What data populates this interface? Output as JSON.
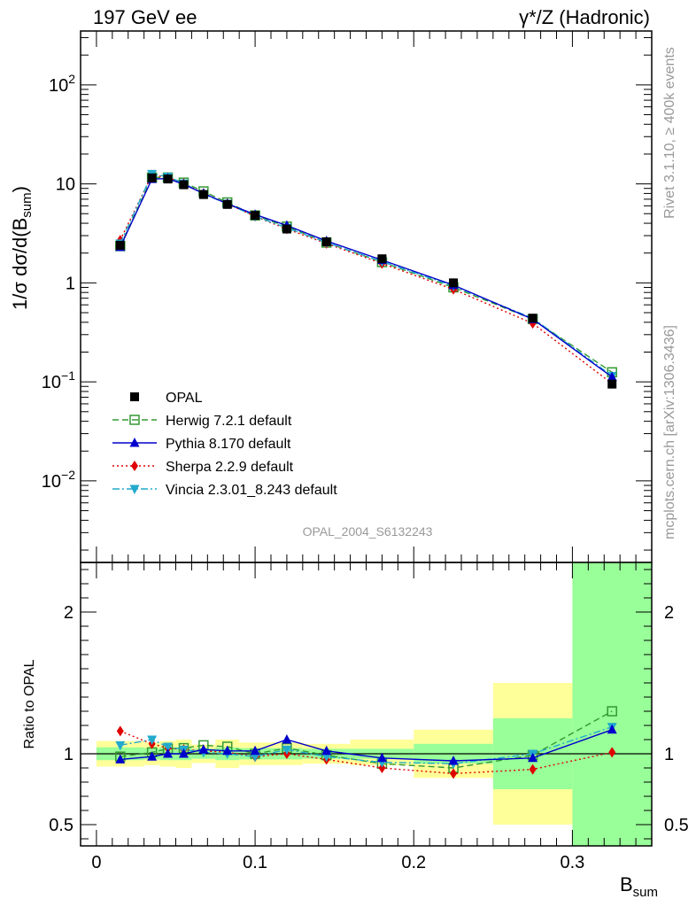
{
  "header": {
    "left": "197 GeV ee",
    "right": "γ*/Z (Hadronic)"
  },
  "side_labels": {
    "rivet": "Rivet 3.1.10, ≥ 400k events",
    "mcplots": "mcplots.cern.ch [arXiv:1306.3436]"
  },
  "analysis_label": "OPAL_2004_S6132243",
  "colors": {
    "OPAL": "#000000",
    "Herwig": "#339933",
    "Pythia": "#0000cc",
    "Sherpa": "#e00000",
    "Vincia": "#22aacc",
    "band_inner": "#99ff99",
    "band_outer": "#ffff99",
    "axis": "#000000"
  },
  "chart_data": [
    {
      "type": "line",
      "panel": "main",
      "yscale": "log",
      "ylabel_parts": {
        "main": "1/σ dσ/d(B",
        "sub": "sum",
        "close": ")"
      },
      "xlim": [
        -0.01,
        0.35
      ],
      "ylim": [
        0.0015,
        350
      ],
      "y_ticks": [
        {
          "value": 0.01,
          "base": "10",
          "exp": "−2"
        },
        {
          "value": 0.1,
          "base": "10",
          "exp": "−1"
        },
        {
          "value": 1,
          "base": "1",
          "exp": ""
        },
        {
          "value": 10,
          "base": "10",
          "exp": ""
        },
        {
          "value": 100,
          "base": "10",
          "exp": "2"
        }
      ],
      "x": [
        0.015,
        0.035,
        0.045,
        0.055,
        0.0675,
        0.0825,
        0.1,
        0.12,
        0.145,
        0.18,
        0.225,
        0.275,
        0.325
      ],
      "bins": [
        [
          0.0,
          0.03
        ],
        [
          0.03,
          0.04
        ],
        [
          0.04,
          0.05
        ],
        [
          0.05,
          0.06
        ],
        [
          0.06,
          0.075
        ],
        [
          0.075,
          0.09
        ],
        [
          0.09,
          0.11
        ],
        [
          0.11,
          0.13
        ],
        [
          0.13,
          0.16
        ],
        [
          0.16,
          0.2
        ],
        [
          0.2,
          0.25
        ],
        [
          0.25,
          0.3
        ],
        [
          0.3,
          0.35
        ]
      ],
      "series": [
        {
          "name": "OPAL",
          "legend": "OPAL",
          "marker": "square",
          "line": "none",
          "values": [
            2.4,
            11.5,
            11.2,
            9.8,
            7.8,
            6.2,
            4.8,
            3.5,
            2.6,
            1.75,
            1.0,
            0.44,
            0.095
          ]
        },
        {
          "name": "Herwig",
          "legend": "Herwig 7.2.1 default",
          "marker": "open-square",
          "line": "dashed",
          "values": [
            2.35,
            11.6,
            11.6,
            10.3,
            8.4,
            6.5,
            4.8,
            3.7,
            2.55,
            1.62,
            0.9,
            0.43,
            0.125
          ]
        },
        {
          "name": "Pythia",
          "legend": "Pythia 8.170 default",
          "marker": "triangle-up",
          "line": "solid",
          "values": [
            2.3,
            11.2,
            11.3,
            9.9,
            8.0,
            6.3,
            4.9,
            3.8,
            2.65,
            1.7,
            0.95,
            0.43,
            0.112
          ]
        },
        {
          "name": "Sherpa",
          "legend": "Sherpa 2.2.9 default",
          "marker": "diamond",
          "line": "dotted",
          "values": [
            2.7,
            12.3,
            11.6,
            10.1,
            8.0,
            6.3,
            4.7,
            3.5,
            2.5,
            1.57,
            0.86,
            0.39,
            0.096
          ]
        },
        {
          "name": "Vincia",
          "legend": "Vincia 2.3.01_8.243 default",
          "marker": "triangle-down",
          "line": "dashdot",
          "values": [
            2.5,
            12.6,
            11.8,
            10.1,
            7.9,
            6.3,
            4.7,
            3.6,
            2.55,
            1.64,
            0.93,
            0.44,
            0.115
          ]
        }
      ]
    },
    {
      "type": "line",
      "panel": "ratio",
      "ylabel": "Ratio to OPAL",
      "xlabel_parts": {
        "main": "B",
        "sub": "sum"
      },
      "xlim": [
        -0.01,
        0.35
      ],
      "ylim": [
        0.35,
        2.35
      ],
      "x_ticks": [
        {
          "value": 0,
          "label": "0"
        },
        {
          "value": 0.1,
          "label": "0.1"
        },
        {
          "value": 0.2,
          "label": "0.2"
        },
        {
          "value": 0.3,
          "label": "0.3"
        }
      ],
      "y_ticks": [
        {
          "value": 0.5,
          "label": "0.5"
        },
        {
          "value": 1,
          "label": "1"
        },
        {
          "value": 2,
          "label": "2"
        }
      ],
      "reference_line": 1,
      "bands": {
        "inner": [
          [
            0.955,
            1.045
          ],
          [
            0.96,
            1.04
          ],
          [
            0.955,
            1.045
          ],
          [
            0.955,
            1.045
          ],
          [
            0.965,
            1.035
          ],
          [
            0.955,
            1.045
          ],
          [
            0.96,
            1.04
          ],
          [
            0.96,
            1.04
          ],
          [
            0.965,
            1.035
          ],
          [
            0.965,
            1.035
          ],
          [
            0.93,
            1.07
          ],
          [
            0.75,
            1.25
          ],
          [
            0.35,
            2.35
          ]
        ],
        "outer": [
          [
            0.91,
            1.09
          ],
          [
            0.92,
            1.08
          ],
          [
            0.91,
            1.09
          ],
          [
            0.9,
            1.1
          ],
          [
            0.935,
            1.065
          ],
          [
            0.9,
            1.1
          ],
          [
            0.92,
            1.08
          ],
          [
            0.92,
            1.08
          ],
          [
            0.93,
            1.07
          ],
          [
            0.92,
            1.1
          ],
          [
            0.83,
            1.17
          ],
          [
            0.5,
            1.5
          ],
          [
            0.35,
            2.35
          ]
        ]
      },
      "series": [
        {
          "name": "Herwig",
          "values": [
            0.98,
            1.01,
            1.035,
            1.04,
            1.06,
            1.05,
            1.0,
            1.04,
            0.99,
            0.93,
            0.9,
            0.99,
            1.3
          ]
        },
        {
          "name": "Pythia",
          "values": [
            0.96,
            0.98,
            1.0,
            1.0,
            1.03,
            1.02,
            1.02,
            1.1,
            1.02,
            0.97,
            0.95,
            0.97,
            1.17
          ]
        },
        {
          "name": "Sherpa",
          "values": [
            1.16,
            1.07,
            1.04,
            1.03,
            1.02,
            1.01,
            0.98,
            1.0,
            0.96,
            0.9,
            0.86,
            0.89,
            1.01
          ]
        },
        {
          "name": "Vincia",
          "values": [
            1.06,
            1.1,
            1.05,
            1.03,
            1.01,
            1.0,
            0.98,
            1.03,
            0.98,
            0.94,
            0.93,
            1.0,
            1.19
          ]
        }
      ]
    }
  ]
}
